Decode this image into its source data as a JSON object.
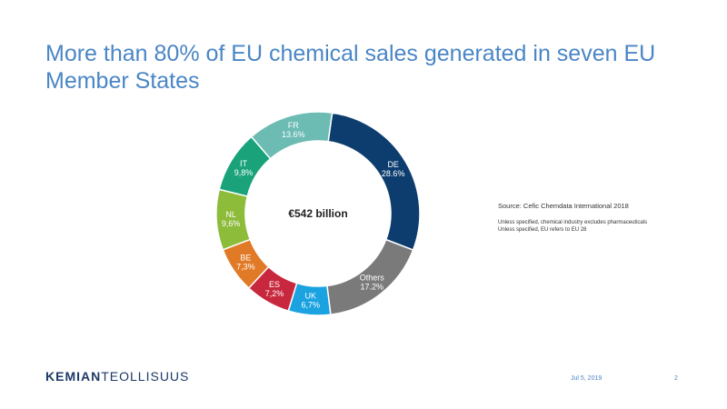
{
  "slide": {
    "title": "More than 80% of EU chemical sales generated in seven EU\nMember States"
  },
  "chart_data": {
    "type": "pie",
    "donut": true,
    "center_label": "€542 billion",
    "slices": [
      {
        "label": "DE",
        "value_text": "28.6%",
        "value": 28.6,
        "color": "#0d3d6e"
      },
      {
        "label": "Others",
        "value_text": "17.2%",
        "value": 17.2,
        "color": "#7a7a7a"
      },
      {
        "label": "UK",
        "value_text": "6,7%",
        "value": 6.7,
        "color": "#1aa3e0"
      },
      {
        "label": "ES",
        "value_text": "7,2%",
        "value": 7.2,
        "color": "#c8283e"
      },
      {
        "label": "BE",
        "value_text": "7,3%",
        "value": 7.3,
        "color": "#e07a26"
      },
      {
        "label": "NL",
        "value_text": "9,6%",
        "value": 9.6,
        "color": "#8dbb3a"
      },
      {
        "label": "IT",
        "value_text": "9,8%",
        "value": 9.8,
        "color": "#1aa37a"
      },
      {
        "label": "FR",
        "value_text": "13.6%",
        "value": 13.6,
        "color": "#6cbcb4"
      }
    ]
  },
  "notes": {
    "source": "Source: Cefic Chemdata International 2018",
    "line1": "Unless specified, chemical industry excludes pharmaceuticals",
    "line2": "Unless specified, EU refers to EU 28"
  },
  "footer": {
    "logo_bold": "KEMIAN",
    "logo_light": "TEOLLISUUS",
    "date": "Jul 5, 2019",
    "page": "2"
  }
}
